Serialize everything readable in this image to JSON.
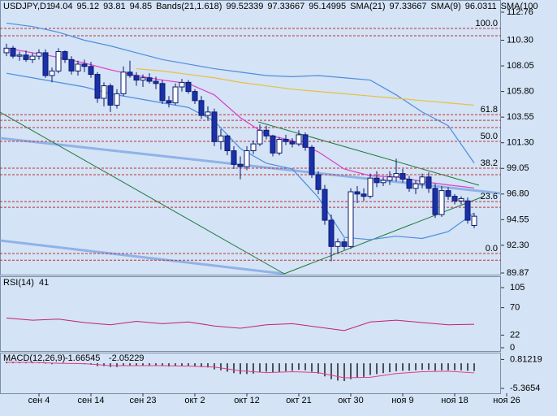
{
  "header": {
    "symbol": "USDJPY,D1",
    "bands_name": "Bands(21,1.618)",
    "bands_values": [
      99.52339,
      97.33667,
      95.14995
    ],
    "sma21_name": "SMA(21)",
    "sma21_value": 97.33667,
    "sma9_name": "SMA(9)",
    "sma9_value": 96.0311,
    "sma100_name": "SMA(100"
  },
  "chart_data": [
    {
      "type": "candlestick",
      "categories": [
        null,
        null,
        null,
        null,
        null,
        "сен 4",
        null,
        null,
        null,
        null,
        null,
        null,
        null,
        "сен 14",
        null,
        null,
        null,
        null,
        null,
        null,
        null,
        "сен 23",
        null,
        null,
        null,
        null,
        null,
        null,
        null,
        "окт 2",
        null,
        null,
        null,
        null,
        null,
        null,
        null,
        "окт 12",
        null,
        null,
        null,
        null,
        null,
        null,
        null,
        "окт 21",
        null,
        null,
        null,
        null,
        null,
        null,
        null,
        "окт 30",
        null,
        null,
        null,
        null,
        null,
        null,
        null,
        "ноя 9",
        null,
        null,
        null,
        null,
        null,
        null,
        null,
        "ноя 18",
        null,
        null,
        null,
        null,
        null,
        null,
        null,
        "ноя 26"
      ],
      "ohlc": [
        [
          109.2,
          110.0,
          108.9,
          109.6
        ],
        [
          109.6,
          109.8,
          108.7,
          108.9
        ],
        [
          108.9,
          109.3,
          108.5,
          109.0
        ],
        [
          109.0,
          109.4,
          108.4,
          108.6
        ],
        [
          108.6,
          109.2,
          108.3,
          108.9
        ],
        [
          108.9,
          109.5,
          108.6,
          109.2
        ],
        [
          109.2,
          109.5,
          107.0,
          107.2
        ],
        [
          107.2,
          107.9,
          106.6,
          107.6
        ],
        [
          107.6,
          109.6,
          107.4,
          109.3
        ],
        [
          109.3,
          109.4,
          108.3,
          108.6
        ],
        [
          108.6,
          108.9,
          107.3,
          107.6
        ],
        [
          107.6,
          108.5,
          107.2,
          108.2
        ],
        [
          108.2,
          108.6,
          107.5,
          108.0
        ],
        [
          108.0,
          108.4,
          107.0,
          107.3
        ],
        [
          107.3,
          107.5,
          104.8,
          105.2
        ],
        [
          105.2,
          106.6,
          104.5,
          106.3
        ],
        [
          106.3,
          106.5,
          104.0,
          104.6
        ],
        [
          104.6,
          106.0,
          104.3,
          105.6
        ],
        [
          105.6,
          108.0,
          105.4,
          107.5
        ],
        [
          107.5,
          108.5,
          107.0,
          107.2
        ],
        [
          107.2,
          107.5,
          106.3,
          106.8
        ],
        [
          106.8,
          107.3,
          106.2,
          107.0
        ],
        [
          107.0,
          107.4,
          106.5,
          106.7
        ],
        [
          106.7,
          107.1,
          106.0,
          106.5
        ],
        [
          106.5,
          106.8,
          104.7,
          105.0
        ],
        [
          105.0,
          105.4,
          104.4,
          104.8
        ],
        [
          104.8,
          106.5,
          104.6,
          106.2
        ],
        [
          106.2,
          106.9,
          105.8,
          106.6
        ],
        [
          106.6,
          106.8,
          105.6,
          105.8
        ],
        [
          105.8,
          106.0,
          104.7,
          105.0
        ],
        [
          105.0,
          105.4,
          103.4,
          103.7
        ],
        [
          103.7,
          104.5,
          103.3,
          104.0
        ],
        [
          104.0,
          104.3,
          101.0,
          101.4
        ],
        [
          101.4,
          102.5,
          100.7,
          101.9
        ],
        [
          101.9,
          102.0,
          100.2,
          100.6
        ],
        [
          100.6,
          101.0,
          99.0,
          99.4
        ],
        [
          99.4,
          100.1,
          98.1,
          99.2
        ],
        [
          99.2,
          101.0,
          98.9,
          100.6
        ],
        [
          100.6,
          101.5,
          100.3,
          101.2
        ],
        [
          101.2,
          102.9,
          101.0,
          102.4
        ],
        [
          102.4,
          102.8,
          101.6,
          101.9
        ],
        [
          101.9,
          102.0,
          100.1,
          100.4
        ],
        [
          100.4,
          101.8,
          100.2,
          101.6
        ],
        [
          101.6,
          102.0,
          101.1,
          101.4
        ],
        [
          101.4,
          101.7,
          100.9,
          101.2
        ],
        [
          101.2,
          102.4,
          101.0,
          102.0
        ],
        [
          102.0,
          102.2,
          100.6,
          100.9
        ],
        [
          100.9,
          101.1,
          98.2,
          98.5
        ],
        [
          98.5,
          98.8,
          96.8,
          97.2
        ],
        [
          97.2,
          97.6,
          94.1,
          94.5
        ],
        [
          94.5,
          95.0,
          90.9,
          92.2
        ],
        [
          92.2,
          92.9,
          91.6,
          92.6
        ],
        [
          92.6,
          92.9,
          91.9,
          92.2
        ],
        [
          92.2,
          97.3,
          92.0,
          97.0
        ],
        [
          97.0,
          97.5,
          96.0,
          96.8
        ],
        [
          96.8,
          97.3,
          96.2,
          96.6
        ],
        [
          96.6,
          98.6,
          96.4,
          98.2
        ],
        [
          98.2,
          98.8,
          97.4,
          97.8
        ],
        [
          97.8,
          98.3,
          97.5,
          98.0
        ],
        [
          98.0,
          98.8,
          97.6,
          98.3
        ],
        [
          98.3,
          99.9,
          97.9,
          98.6
        ],
        [
          98.6,
          99.0,
          97.8,
          98.1
        ],
        [
          98.1,
          98.4,
          97.0,
          97.3
        ],
        [
          97.3,
          98.0,
          96.8,
          97.7
        ],
        [
          97.7,
          98.6,
          97.3,
          98.3
        ],
        [
          98.3,
          98.7,
          96.9,
          97.3
        ],
        [
          97.3,
          97.7,
          94.7,
          95.0
        ],
        [
          95.0,
          97.5,
          94.8,
          97.1
        ],
        [
          97.1,
          97.4,
          96.3,
          96.6
        ],
        [
          96.6,
          96.8,
          95.9,
          96.2
        ],
        [
          96.2,
          96.6,
          95.9,
          96.4
        ],
        [
          96.2,
          96.5,
          94.2,
          94.5
        ],
        [
          94.04,
          95.12,
          93.81,
          94.85
        ],
        null,
        null,
        null,
        null,
        null
      ],
      "bull_color": "#ffffff",
      "bear_color": "#1a30a8",
      "wick_color": "#0a1a70",
      "series": [
        {
          "name": "upper",
          "color": "#4a8ee0",
          "x": [
            0,
            4,
            8,
            12,
            16,
            20,
            24,
            28,
            32,
            36,
            40,
            44,
            48,
            52,
            56,
            60,
            64,
            68,
            72
          ],
          "values": [
            111.8,
            111.5,
            111.0,
            110.3,
            109.8,
            109.2,
            108.6,
            108.2,
            107.8,
            107.5,
            107.2,
            107.1,
            107.2,
            107.0,
            106.8,
            105.5,
            104.0,
            102.8,
            99.52339
          ]
        },
        {
          "name": "middle",
          "color": "#e03cc8",
          "x": [
            0,
            4,
            8,
            12,
            16,
            20,
            24,
            28,
            32,
            36,
            40,
            44,
            48,
            52,
            56,
            60,
            64,
            68,
            72
          ],
          "values": [
            109.6,
            109.2,
            108.8,
            108.3,
            107.7,
            107.2,
            106.8,
            106.5,
            105.5,
            103.5,
            102.0,
            101.5,
            100.5,
            99.0,
            98.4,
            98.3,
            97.9,
            97.6,
            97.33667
          ]
        },
        {
          "name": "lower",
          "color": "#4a8ee0",
          "x": [
            0,
            4,
            8,
            12,
            16,
            20,
            24,
            28,
            32,
            36,
            40,
            44,
            48,
            52,
            56,
            60,
            64,
            68,
            72
          ],
          "values": [
            107.4,
            107.0,
            106.6,
            106.2,
            105.6,
            105.2,
            104.8,
            104.4,
            103.2,
            100.8,
            99.5,
            99.0,
            96.5,
            93.0,
            92.8,
            93.1,
            92.9,
            93.5,
            95.14995
          ]
        },
        {
          "name": "sma100",
          "color": "#e8c040",
          "x": [
            20,
            24,
            28,
            32,
            36,
            40,
            44,
            48,
            52,
            56,
            60,
            64,
            68,
            72
          ],
          "values": [
            107.8,
            107.6,
            107.3,
            107.0,
            106.6,
            106.3,
            106.0,
            105.8,
            105.6,
            105.4,
            105.2,
            105.0,
            104.8,
            104.6
          ]
        }
      ],
      "ylim": [
        89.87,
        112.76
      ],
      "yticks": [
        112.76,
        {
          "value": 110.3,
          "label": "110.30"
        },
        108.05,
        {
          "value": 105.8,
          "label": "105.80"
        },
        103.55,
        {
          "value": 101.3,
          "label": "101.30"
        },
        99.05,
        {
          "value": 96.8,
          "label": "96.80"
        },
        94.55,
        {
          "value": 92.3,
          "label": "92.30"
        },
        89.87
      ],
      "fib": [
        {
          "level": {
            "value": 100,
            "label": "100.0"
          },
          "price": 111.33
        },
        {
          "level": 61.8,
          "price": 103.77
        },
        {
          "level": {
            "value": 50,
            "label": "50.0"
          },
          "price": 101.42
        },
        {
          "level": 38.2,
          "price": 99.07
        },
        {
          "level": 23.6,
          "price": 96.14
        },
        {
          "level": {
            "value": 0,
            "label": "0.0"
          },
          "price": 91.58
        }
      ],
      "hlines": [
        110.69,
        103.27,
        102.63,
        98.5,
        95.64,
        90.99
      ]
    },
    {
      "type": "line",
      "title": "RSI(14)",
      "last": 41,
      "color": "#c0207a",
      "x": [
        0,
        4,
        8,
        12,
        16,
        20,
        24,
        28,
        32,
        36,
        40,
        44,
        48,
        52,
        56,
        60,
        64,
        68,
        72
      ],
      "values": [
        52,
        48,
        50,
        44,
        40,
        46,
        42,
        45,
        38,
        34,
        40,
        42,
        36,
        30,
        45,
        48,
        44,
        40,
        41
      ],
      "ylim": [
        -5.7,
        123.4
      ],
      "yticks": [
        105,
        70,
        22,
        0
      ]
    },
    {
      "type": "macd",
      "title": "MACD(12,26,9)",
      "last": [
        -1.66545,
        -2.05229
      ],
      "color": "#202020",
      "signal_color": "#e03c8c",
      "values": [
        0.3,
        0.3,
        0.2,
        0.1,
        0.1,
        0.1,
        -0.1,
        -0.2,
        0,
        0,
        -0.1,
        -0.1,
        -0.2,
        -0.3,
        -0.6,
        -0.6,
        -0.8,
        -0.8,
        -0.6,
        -0.5,
        -0.5,
        -0.5,
        -0.5,
        -0.5,
        -0.6,
        -0.7,
        -0.6,
        -0.5,
        -0.5,
        -0.6,
        -0.8,
        -0.9,
        -1.3,
        -1.5,
        -1.8,
        -2.1,
        -2.3,
        -2.3,
        -2.2,
        -1.9,
        -1.8,
        -1.9,
        -1.8,
        -1.7,
        -1.6,
        -1.4,
        -1.5,
        -1.8,
        -2.2,
        -2.8,
        -3.4,
        -3.7,
        -3.8,
        -3.4,
        -3.1,
        -2.9,
        -2.5,
        -2.3,
        -2.1,
        -1.9,
        -1.7,
        -1.6,
        -1.6,
        -1.5,
        -1.4,
        -1.4,
        -1.6,
        -1.5,
        -1.5,
        -1.5,
        -1.5,
        -1.6,
        -1.66545
      ],
      "signal_x": [
        0,
        4,
        8,
        12,
        16,
        20,
        24,
        28,
        32,
        36,
        40,
        44,
        48,
        52,
        56,
        60,
        64,
        68,
        72
      ],
      "signal": [
        0.2,
        0.2,
        0.0,
        -0.1,
        -0.5,
        -0.5,
        -0.5,
        -0.6,
        -0.8,
        -1.6,
        -2.0,
        -1.8,
        -2.0,
        -3.1,
        -3.0,
        -2.2,
        -1.8,
        -1.7,
        -2.05229
      ],
      "ylim": [
        -6.4,
        2.1
      ],
      "yticks": [
        0.81219,
        -5.3654
      ]
    }
  ]
}
